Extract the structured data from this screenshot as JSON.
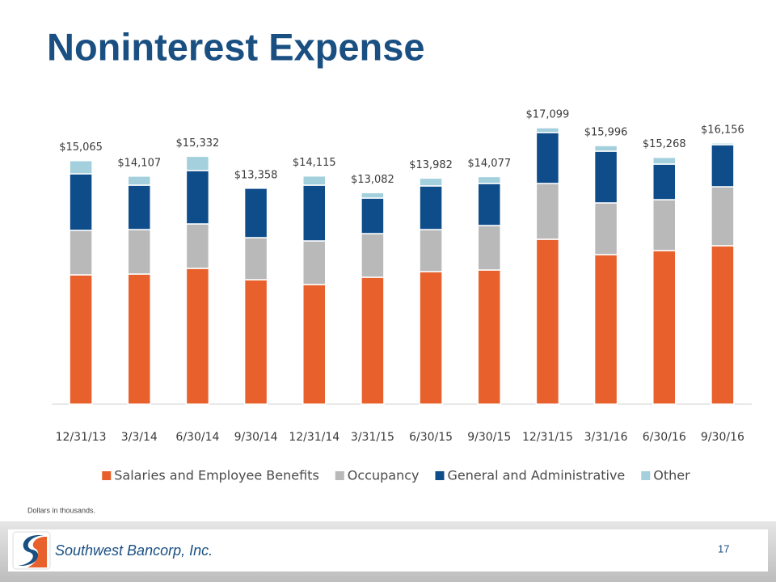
{
  "title": "Noninterest Expense",
  "chart_data": {
    "type": "stacked-bar",
    "categories": [
      "12/31/13",
      "3/3/14",
      "6/30/14",
      "9/30/14",
      "12/31/14",
      "3/31/15",
      "6/30/15",
      "9/30/15",
      "12/31/15",
      "3/31/16",
      "6/30/16",
      "9/30/16"
    ],
    "series": [
      {
        "name": "Salaries and Employee Benefits",
        "color": "#e8612c",
        "values": [
          8000,
          8050,
          8400,
          7700,
          7400,
          7850,
          8200,
          8300,
          10200,
          9250,
          9500,
          9800
        ]
      },
      {
        "name": "Occupancy",
        "color": "#b9b9b9",
        "values": [
          2750,
          2750,
          2750,
          2600,
          2700,
          2700,
          2600,
          2750,
          3450,
          3200,
          3150,
          3650
        ]
      },
      {
        "name": "General and Administrative",
        "color": "#0e4c8a",
        "values": [
          3500,
          2750,
          3300,
          3058,
          3450,
          2200,
          2700,
          2600,
          3150,
          3200,
          2200,
          2600
        ]
      },
      {
        "name": "Other",
        "color": "#a3d0dc",
        "values": [
          815,
          557,
          882,
          0,
          565,
          332,
          482,
          427,
          299,
          346,
          418,
          106
        ]
      }
    ],
    "totals": [
      15065,
      14107,
      15332,
      13358,
      14115,
      13082,
      13982,
      14077,
      17099,
      15996,
      15268,
      16156
    ],
    "total_labels": [
      "$15,065",
      "$14,107",
      "$15,332",
      "$13,358",
      "$14,115",
      "$13,082",
      "$13,982",
      "$14,077",
      "$17,099",
      "$15,996",
      "$15,268",
      "$16,156"
    ],
    "ylim": [
      0,
      18000
    ],
    "legend": "bottom"
  },
  "footnote": "Dollars in thousands.",
  "footer": {
    "company": "Southwest Bancorp, Inc.",
    "page": "17"
  }
}
